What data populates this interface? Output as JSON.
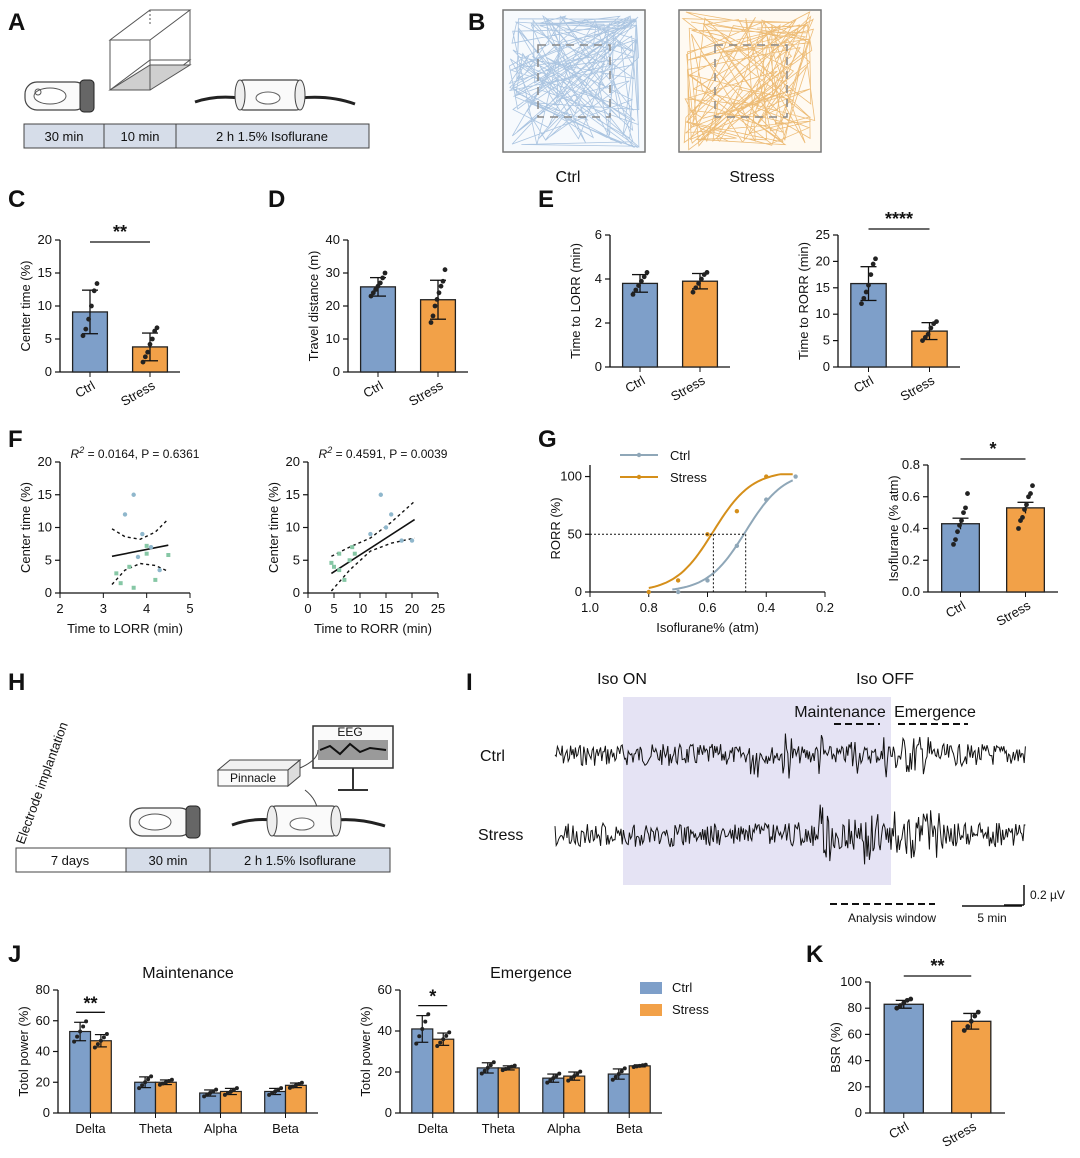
{
  "colors": {
    "ctrl": "#7e9fc9",
    "stress": "#f2a148",
    "ctrl_line": "#8fa7b8",
    "stress_line": "#d58f1a",
    "ctrl_dot": "#8fb7cc",
    "stress_dot": "#86c7a5",
    "shade": "#e5e3f4"
  },
  "panelA": {
    "label": "A",
    "timeline": [
      "30 min",
      "10 min",
      "2 h 1.5% Isoflurane"
    ]
  },
  "panelB": {
    "label": "B",
    "captions": [
      "Ctrl",
      "Stress"
    ]
  },
  "chart_data": [
    {
      "id": "C",
      "label": "C",
      "type": "bar",
      "categories": [
        "Ctrl",
        "Stress"
      ],
      "values": [
        9.1,
        3.8
      ],
      "errors": [
        3.3,
        2.1
      ],
      "points": [
        [
          5.5,
          6.5,
          8,
          10,
          12.3,
          13.4
        ],
        [
          1.5,
          2.3,
          3,
          4.2,
          5,
          6.2,
          6.7
        ]
      ],
      "ylabel": "Center time (%)",
      "ylim": [
        0,
        20
      ],
      "yticks": [
        0,
        5,
        10,
        15,
        20
      ],
      "significance": "**"
    },
    {
      "id": "D",
      "label": "D",
      "type": "bar",
      "categories": [
        "Ctrl",
        "Stress"
      ],
      "values": [
        25.8,
        21.9
      ],
      "errors": [
        2.8,
        5.9
      ],
      "points": [
        [
          23,
          24,
          25,
          26,
          27,
          28.5,
          30
        ],
        [
          15,
          17,
          20,
          22,
          24,
          26,
          27.5,
          31
        ]
      ],
      "ylabel": "Travel distance (m)",
      "ylim": [
        0,
        40
      ],
      "yticks": [
        0,
        10,
        20,
        30,
        40
      ]
    },
    {
      "id": "E1",
      "label": "E",
      "type": "bar",
      "categories": [
        "Ctrl",
        "Stress"
      ],
      "values": [
        3.8,
        3.9
      ],
      "errors": [
        0.4,
        0.35
      ],
      "points": [
        [
          3.3,
          3.5,
          3.7,
          3.9,
          4.1,
          4.3
        ],
        [
          3.4,
          3.6,
          3.8,
          4.0,
          4.2,
          4.3
        ]
      ],
      "ylabel": "Time to LORR (min)",
      "ylim": [
        0,
        6
      ],
      "yticks": [
        0,
        2,
        4,
        6
      ]
    },
    {
      "id": "E2",
      "label": "",
      "type": "bar",
      "categories": [
        "Ctrl",
        "Stress"
      ],
      "values": [
        15.8,
        6.8
      ],
      "errors": [
        3.2,
        1.6
      ],
      "points": [
        [
          12,
          13,
          14.2,
          15.5,
          17.5,
          19.5,
          20.5
        ],
        [
          5,
          5.6,
          6.2,
          7.4,
          8.2,
          8.6
        ]
      ],
      "ylabel": "Time to RORR (min)",
      "ylim": [
        0,
        25
      ],
      "yticks": [
        0,
        5,
        10,
        15,
        20,
        25
      ],
      "significance": "****"
    },
    {
      "id": "F1",
      "label": "F",
      "type": "scatter",
      "annotation_r": "R",
      "annotation_sup": "2",
      "annotation_rest": " = 0.0164, P = 0.6361",
      "xlabel": "Time to LORR (min)",
      "ylabel": "Center time (%)",
      "xlim": [
        2,
        5
      ],
      "xticks": [
        2,
        3,
        4,
        5
      ],
      "ylim": [
        0,
        20
      ],
      "yticks": [
        0,
        5,
        10,
        15,
        20
      ],
      "ctrl_points": [
        [
          3.7,
          15
        ],
        [
          3.5,
          12
        ],
        [
          3.9,
          9
        ],
        [
          4.1,
          7
        ],
        [
          3.8,
          5.5
        ],
        [
          4.3,
          3.5
        ]
      ],
      "stress_points": [
        [
          3.3,
          3
        ],
        [
          3.6,
          4
        ],
        [
          4.0,
          6
        ],
        [
          4.2,
          2
        ],
        [
          3.4,
          1.5
        ],
        [
          4.5,
          5.8
        ],
        [
          3.7,
          0.8
        ],
        [
          4.0,
          7.2
        ]
      ],
      "fit": [
        [
          3.2,
          5.6
        ],
        [
          4.5,
          7.3
        ]
      ],
      "ci_upper": [
        [
          3.2,
          9.8
        ],
        [
          3.5,
          8.6
        ],
        [
          3.85,
          8.2
        ],
        [
          4.2,
          9.3
        ],
        [
          4.5,
          11.3
        ]
      ],
      "ci_lower": [
        [
          3.2,
          1.3
        ],
        [
          3.5,
          3.5
        ],
        [
          3.85,
          4.5
        ],
        [
          4.2,
          4.2
        ],
        [
          4.5,
          3.3
        ]
      ]
    },
    {
      "id": "F2",
      "label": "",
      "type": "scatter",
      "annotation_r": "R",
      "annotation_sup": "2",
      "annotation_rest": " = 0.4591, P = 0.0039",
      "xlabel": "Time to RORR (min)",
      "ylabel": "Center time (%)",
      "xlim": [
        0,
        25
      ],
      "xticks": [
        0,
        5,
        10,
        15,
        20,
        25
      ],
      "ylim": [
        0,
        20
      ],
      "yticks": [
        0,
        5,
        10,
        15,
        20
      ],
      "ctrl_points": [
        [
          14,
          15
        ],
        [
          16,
          12
        ],
        [
          18,
          8
        ],
        [
          20,
          8
        ],
        [
          12,
          9
        ],
        [
          15,
          10
        ]
      ],
      "stress_points": [
        [
          5,
          4
        ],
        [
          6,
          6
        ],
        [
          7,
          2
        ],
        [
          8,
          5
        ],
        [
          9,
          6
        ],
        [
          6,
          3.5
        ],
        [
          4.5,
          4.6
        ],
        [
          8.5,
          7
        ]
      ],
      "fit": [
        [
          4.5,
          3.0
        ],
        [
          20.5,
          11.2
        ]
      ],
      "ci_upper": [
        [
          4.5,
          5.6
        ],
        [
          8,
          7.0
        ],
        [
          12,
          8.4
        ],
        [
          16,
          10.8
        ],
        [
          20.5,
          14.0
        ]
      ],
      "ci_lower": [
        [
          4.5,
          0.3
        ],
        [
          8,
          3.5
        ],
        [
          12,
          6.4
        ],
        [
          16,
          7.6
        ],
        [
          20.5,
          8.4
        ]
      ]
    },
    {
      "id": "G1",
      "label": "G",
      "type": "line",
      "xlabel": "Isoflurane% (atm)",
      "ylabel": "RORR (%)",
      "xlim": [
        1.0,
        0.2
      ],
      "xticks": [
        1.0,
        0.8,
        0.6,
        0.4,
        0.2
      ],
      "ylim": [
        0,
        110
      ],
      "yticks": [
        0,
        50,
        100
      ],
      "legend": [
        "Ctrl",
        "Stress"
      ],
      "ctrl_points": [
        [
          0.7,
          0
        ],
        [
          0.6,
          10
        ],
        [
          0.5,
          40
        ],
        [
          0.4,
          80
        ],
        [
          0.3,
          100
        ]
      ],
      "stress_points": [
        [
          0.8,
          0
        ],
        [
          0.7,
          10
        ],
        [
          0.6,
          50
        ],
        [
          0.5,
          70
        ],
        [
          0.4,
          100
        ]
      ],
      "ctrl_ec50": 0.47,
      "stress_ec50": 0.58
    },
    {
      "id": "G2",
      "label": "",
      "type": "bar",
      "categories": [
        "Ctrl",
        "Stress"
      ],
      "values": [
        0.43,
        0.53
      ],
      "errors": [
        0.035,
        0.035
      ],
      "points": [
        [
          0.3,
          0.33,
          0.38,
          0.42,
          0.45,
          0.5,
          0.53,
          0.62
        ],
        [
          0.4,
          0.45,
          0.47,
          0.52,
          0.55,
          0.6,
          0.62,
          0.67
        ]
      ],
      "ylabel": "Isoflurane (% atm)",
      "ylim": [
        0,
        0.8
      ],
      "yticks": [
        0.0,
        0.2,
        0.4,
        0.6,
        0.8
      ],
      "significance": "*",
      "sem": true
    },
    {
      "id": "J1",
      "label": "J",
      "type": "bar",
      "title": "Maintenance",
      "categories": [
        "Delta",
        "Theta",
        "Alpha",
        "Beta"
      ],
      "series": [
        {
          "name": "Ctrl",
          "values": [
            53,
            20,
            13,
            14
          ],
          "errors": [
            6,
            3.5,
            2,
            2
          ]
        },
        {
          "name": "Stress",
          "values": [
            47,
            20,
            14,
            18
          ],
          "errors": [
            4,
            1.5,
            2,
            1.5
          ]
        }
      ],
      "ylabel": "Totol power (%)",
      "ylim": [
        0,
        80
      ],
      "yticks": [
        0,
        20,
        40,
        60,
        80
      ],
      "significance": "**"
    },
    {
      "id": "J2",
      "label": "",
      "type": "bar",
      "title": "Emergence",
      "categories": [
        "Delta",
        "Theta",
        "Alpha",
        "Beta"
      ],
      "series": [
        {
          "name": "Ctrl",
          "values": [
            41,
            22,
            17,
            19
          ],
          "errors": [
            6.5,
            2.5,
            2,
            2.5
          ]
        },
        {
          "name": "Stress",
          "values": [
            36,
            22,
            18,
            23
          ],
          "errors": [
            3,
            1,
            2,
            0.5
          ]
        }
      ],
      "ylabel": "Totol power (%)",
      "ylim": [
        0,
        60
      ],
      "yticks": [
        0,
        20,
        40,
        60
      ],
      "legend": [
        "Ctrl",
        "Stress"
      ],
      "significance": "*"
    },
    {
      "id": "K",
      "label": "K",
      "type": "bar",
      "categories": [
        "Ctrl",
        "Stress"
      ],
      "values": [
        83,
        70
      ],
      "errors": [
        3,
        6
      ],
      "points": [
        [
          80,
          82,
          84,
          86,
          87
        ],
        [
          63,
          66,
          70,
          74,
          77
        ]
      ],
      "ylabel": "BSR (%)",
      "ylim": [
        0,
        100
      ],
      "yticks": [
        0,
        20,
        40,
        60,
        80,
        100
      ],
      "significance": "**"
    }
  ],
  "panelH": {
    "label": "H",
    "rotated": "Electrode implantation",
    "device": "Pinnacle",
    "monitor": "EEG",
    "timeline": [
      "7 days",
      "30 min",
      "2 h 1.5% Isoflurane"
    ]
  },
  "panelI": {
    "label": "I",
    "iso_on": "Iso ON",
    "iso_off": "Iso OFF",
    "maintenance": "Maintenance",
    "emergence": "Emergence",
    "ctrl": "Ctrl",
    "stress": "Stress",
    "scale_v": "0.2 µV",
    "analysis": "Analysis window",
    "scale_t": "5 min"
  }
}
